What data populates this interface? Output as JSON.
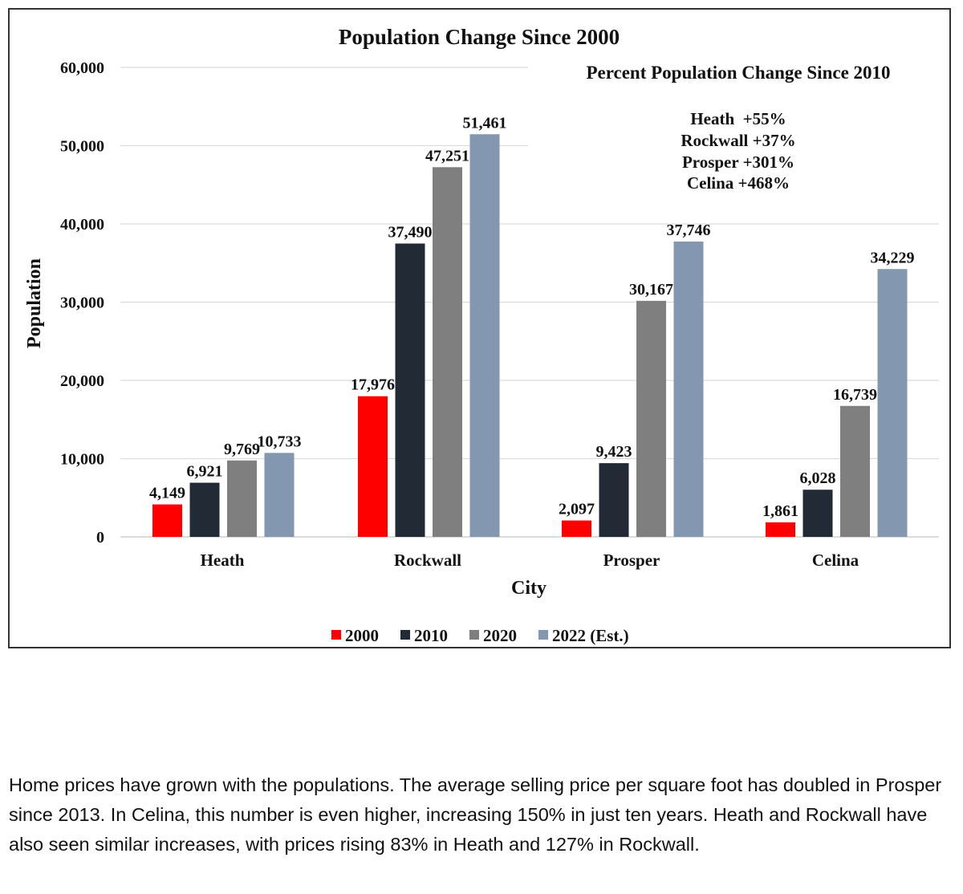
{
  "chart_data": {
    "type": "bar",
    "title": "Population Change Since 2000",
    "xlabel": "City",
    "ylabel": "Population",
    "ylim": [
      0,
      60000
    ],
    "yticks": [
      0,
      10000,
      20000,
      30000,
      40000,
      50000,
      60000
    ],
    "ytick_labels": [
      "0",
      "10,000",
      "20,000",
      "30,000",
      "40,000",
      "50,000",
      "60,000"
    ],
    "grid": true,
    "legend_position": "bottom",
    "categories": [
      "Heath",
      "Rockwall",
      "Prosper",
      "Celina"
    ],
    "series": [
      {
        "name": "2000",
        "color": "#ff0000",
        "values": [
          4149,
          17976,
          2097,
          1861
        ],
        "labels": [
          "4,149",
          "17,976",
          "2,097",
          "1,861"
        ]
      },
      {
        "name": "2010",
        "color": "#222a35",
        "values": [
          6921,
          37490,
          9423,
          6028
        ],
        "labels": [
          "6,921",
          "37,490",
          "9,423",
          "6,028"
        ]
      },
      {
        "name": "2020",
        "color": "#7f7f7f",
        "values": [
          9769,
          47251,
          30167,
          16739
        ],
        "labels": [
          "9,769",
          "47,251",
          "30,167",
          "16,739"
        ]
      },
      {
        "name": "2022 (Est.)",
        "color": "#8497b0",
        "values": [
          10733,
          51461,
          37746,
          34229
        ],
        "labels": [
          "10,733",
          "51,461",
          "37,746",
          "34,229"
        ]
      }
    ],
    "annotation": {
      "title": "Percent Population Change Since 2010",
      "lines": [
        "Heath  +55%",
        "Rockwall +37%",
        "Prosper +301%",
        "Celina +468%"
      ]
    }
  },
  "paragraph": "Home prices have grown with the populations. The average selling price per square foot has doubled in Prosper since 2013. In Celina, this number is even higher, increasing 150% in just ten years. Heath and Rockwall have also seen similar increases, with prices rising 83% in Heath and 127% in Rockwall."
}
